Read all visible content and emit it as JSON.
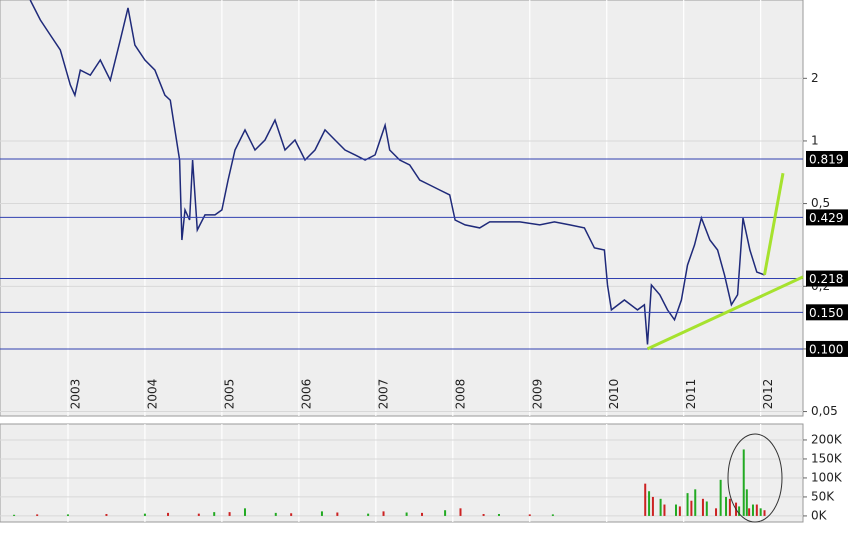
{
  "chart_data": [
    {
      "type": "line",
      "log_scale": true,
      "grid": true,
      "color": "#1f2a7a",
      "xlim": [
        2002.117,
        2012.55
      ],
      "xticks": [
        2003,
        2004,
        2005,
        2006,
        2007,
        2008,
        2009,
        2010,
        2011,
        2012
      ],
      "ylim": [
        0.0476,
        4.76
      ],
      "yticks": [
        {
          "value": 0.05,
          "label": "0,05"
        },
        {
          "value": 0.1,
          "label": "0,1"
        },
        {
          "value": 0.2,
          "label": "0,2"
        },
        {
          "value": 0.5,
          "label": "0,5"
        },
        {
          "value": 1,
          "label": "1"
        },
        {
          "value": 2,
          "label": "2"
        }
      ],
      "x": [
        2002.51,
        2002.64,
        2002.77,
        2002.9,
        2003.03,
        2003.09,
        2003.16,
        2003.29,
        2003.42,
        2003.55,
        2003.68,
        2003.78,
        2003.87,
        2004.0,
        2004.13,
        2004.26,
        2004.33,
        2004.39,
        2004.45,
        2004.48,
        2004.52,
        2004.58,
        2004.62,
        2004.68,
        2004.78,
        2004.91,
        2005.0,
        2005.08,
        2005.17,
        2005.3,
        2005.43,
        2005.56,
        2005.69,
        2005.82,
        2005.95,
        2006.08,
        2006.21,
        2006.34,
        2006.47,
        2006.6,
        2006.73,
        2006.86,
        2006.99,
        2007.12,
        2007.18,
        2007.31,
        2007.44,
        2007.57,
        2007.7,
        2007.83,
        2007.96,
        2008.03,
        2008.16,
        2008.35,
        2008.48,
        2008.87,
        2009.13,
        2009.32,
        2009.52,
        2009.71,
        2009.84,
        2009.97,
        2010.01,
        2010.06,
        2010.23,
        2010.4,
        2010.49,
        2010.53,
        2010.58,
        2010.69,
        2010.79,
        2010.88,
        2010.97,
        2011.05,
        2011.14,
        2011.23,
        2011.34,
        2011.44,
        2011.53,
        2011.62,
        2011.7,
        2011.77,
        2011.86,
        2011.95,
        2012.05
      ],
      "values": [
        4.76,
        3.82,
        3.23,
        2.74,
        1.86,
        1.66,
        2.19,
        2.07,
        2.45,
        1.96,
        3.06,
        4.36,
        2.89,
        2.45,
        2.19,
        1.66,
        1.57,
        1.13,
        0.81,
        0.334,
        0.466,
        0.417,
        0.81,
        0.373,
        0.441,
        0.441,
        0.466,
        0.649,
        0.905,
        1.13,
        0.905,
        1.01,
        1.26,
        0.905,
        1.01,
        0.81,
        0.905,
        1.13,
        1.01,
        0.905,
        0.857,
        0.81,
        0.857,
        1.19,
        0.905,
        0.81,
        0.767,
        0.649,
        0.614,
        0.581,
        0.55,
        0.417,
        0.395,
        0.382,
        0.408,
        0.408,
        0.395,
        0.408,
        0.395,
        0.382,
        0.306,
        0.299,
        0.203,
        0.154,
        0.172,
        0.154,
        0.163,
        0.105,
        0.203,
        0.182,
        0.154,
        0.138,
        0.172,
        0.253,
        0.316,
        0.426,
        0.334,
        0.299,
        0.227,
        0.163,
        0.182,
        0.426,
        0.299,
        0.234,
        0.227
      ],
      "hlines": [
        {
          "value": 0.819,
          "label": "0.819"
        },
        {
          "value": 0.429,
          "label": "0.429"
        },
        {
          "value": 0.218,
          "label": "0.218"
        },
        {
          "value": 0.15,
          "label": "0.150"
        },
        {
          "value": 0.1,
          "label": "0.100"
        }
      ],
      "hline_color": "#3040b0",
      "trendlines": [
        {
          "color": "#a6e22e",
          "x": [
            2010.53,
            2012.55
          ],
          "values": [
            0.1,
            0.222
          ]
        },
        {
          "color": "#a6e22e",
          "x": [
            2012.05,
            2012.29
          ],
          "values": [
            0.227,
            0.7
          ]
        }
      ]
    },
    {
      "type": "bar",
      "xlim": [
        2002.117,
        2012.55
      ],
      "xticks": [
        2003,
        2004,
        2005,
        2006,
        2007,
        2008,
        2009,
        2010,
        2011,
        2012
      ],
      "ylim": [
        -16000,
        242000
      ],
      "yticks": [
        {
          "value": 0,
          "label": "0K"
        },
        {
          "value": 50000,
          "label": "50K"
        },
        {
          "value": 100000,
          "label": "100K"
        },
        {
          "value": 150000,
          "label": "150K"
        },
        {
          "value": 200000,
          "label": "200K"
        }
      ],
      "series": [
        {
          "color": "#22aa22",
          "x": [
            2002.3,
            2003.0,
            2004.0,
            2004.9,
            2005.3,
            2005.7,
            2006.3,
            2006.9,
            2007.4,
            2007.9,
            2008.6,
            2009.3,
            2010.55,
            2010.7,
            2010.9,
            2011.05,
            2011.15,
            2011.3,
            2011.48,
            2011.55,
            2011.72,
            2011.78,
            2011.82,
            2011.9,
            2012.0
          ],
          "values": [
            3000,
            4000,
            6000,
            10000,
            20000,
            8000,
            12000,
            6000,
            9000,
            15000,
            5000,
            4000,
            65000,
            45000,
            30000,
            60000,
            70000,
            38000,
            95000,
            50000,
            25000,
            175000,
            70000,
            30000,
            20000
          ]
        },
        {
          "color": "#cc2222",
          "x": [
            2002.6,
            2003.5,
            2004.3,
            2004.7,
            2005.1,
            2005.9,
            2006.5,
            2007.1,
            2007.6,
            2008.1,
            2008.4,
            2009.0,
            2010.5,
            2010.6,
            2010.75,
            2010.95,
            2011.1,
            2011.25,
            2011.42,
            2011.6,
            2011.68,
            2011.85,
            2011.95,
            2012.05
          ],
          "values": [
            4000,
            5000,
            8000,
            6000,
            10000,
            7000,
            9000,
            12000,
            8000,
            20000,
            5000,
            4000,
            85000,
            50000,
            30000,
            25000,
            40000,
            45000,
            20000,
            45000,
            35000,
            20000,
            30000,
            15000
          ]
        }
      ]
    }
  ]
}
